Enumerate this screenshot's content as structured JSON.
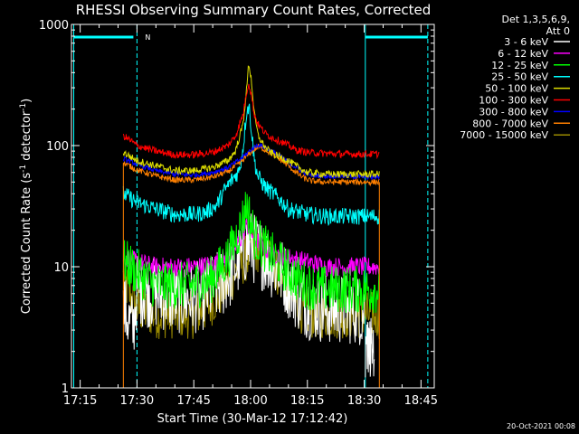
{
  "chart_data": {
    "type": "line",
    "title": "RHESSI Observing Summary Count Rates, Corrected",
    "xlabel": "Start Time (30-Mar-12 17:12:42)",
    "ylabel_main": "Corrected Count Rate (s",
    "ylabel_sup1": "-1",
    "ylabel_mid": " detector",
    "ylabel_sup2": "-1",
    "ylabel_end": ")",
    "yscale": "log",
    "ylim": [
      1,
      1000
    ],
    "xlim": [
      1032.7,
      1128.5
    ],
    "x_units": "minutes since 00:00 UT",
    "y_ticks": [
      {
        "value": 1,
        "label": "1"
      },
      {
        "value": 10,
        "label": "10"
      },
      {
        "value": 100,
        "label": "100"
      },
      {
        "value": 1000,
        "label": "1000"
      }
    ],
    "x_ticks": [
      {
        "value": 1035,
        "label": "17:15"
      },
      {
        "value": 1050,
        "label": "17:30"
      },
      {
        "value": 1065,
        "label": "17:45"
      },
      {
        "value": 1080,
        "label": "18:00"
      },
      {
        "value": 1095,
        "label": "18:15"
      },
      {
        "value": 1110,
        "label": "18:30"
      },
      {
        "value": 1125,
        "label": "18:45"
      }
    ],
    "legend_header": [
      "Det 1,3,5,6,9,",
      "Att 0"
    ],
    "legend": [
      {
        "label": "3 - 6 keV",
        "color": "#ffffff"
      },
      {
        "label": "6 - 12 keV",
        "color": "#ff00ff"
      },
      {
        "label": "12 - 25 keV",
        "color": "#00ff00"
      },
      {
        "label": "25 - 50 keV",
        "color": "#00ffff"
      },
      {
        "label": "50 - 100 keV",
        "color": "#dddd00"
      },
      {
        "label": "100 - 300 keV",
        "color": "#ff0000"
      },
      {
        "label": "300 - 800 keV",
        "color": "#0000ff"
      },
      {
        "label": "800 - 7000 keV",
        "color": "#ff8000"
      },
      {
        "label": "7000 - 15000 keV",
        "color": "#9a8a00"
      }
    ],
    "night_bar_label": "N",
    "series": [
      {
        "name": "3 - 6 keV",
        "color": "#ffffff",
        "noise": 0.3,
        "x": [
          1046.4,
          1047,
          1048,
          1049,
          1050,
          1055,
          1060,
          1065,
          1068,
          1072,
          1076,
          1078,
          1079,
          1080,
          1081,
          1084,
          1088,
          1092,
          1095,
          1100,
          1105,
          1108,
          1110
        ],
        "y": [
          4.5,
          4.2,
          3.5,
          3.0,
          6.5,
          6,
          5.5,
          5.5,
          6,
          7,
          10,
          13,
          15,
          15,
          14,
          12,
          9,
          6,
          5,
          4.5,
          4.5,
          4.5,
          4.2
        ]
      },
      {
        "name": "6 - 12 keV",
        "color": "#ff00ff",
        "noise": 0.08,
        "x": [
          1046.4,
          1050,
          1055,
          1060,
          1065,
          1070,
          1074,
          1077,
          1079,
          1080,
          1081,
          1083,
          1085,
          1090,
          1095,
          1100,
          1105,
          1110,
          1114
        ],
        "y": [
          12,
          11,
          10,
          10,
          10,
          10.5,
          12,
          16,
          22,
          20,
          17,
          15,
          13,
          12,
          11,
          10,
          10,
          10,
          10
        ]
      },
      {
        "name": "12 - 25 keV",
        "color": "#00ff00",
        "noise": 0.2,
        "x": [
          1046.4,
          1050,
          1055,
          1060,
          1065,
          1070,
          1074,
          1077,
          1079,
          1080,
          1081,
          1083,
          1086,
          1090,
          1095,
          1100,
          1105,
          1110,
          1114
        ],
        "y": [
          11,
          9,
          7,
          7,
          7,
          8,
          12,
          20,
          32,
          24,
          18,
          15,
          12,
          9,
          7,
          6.5,
          6.5,
          6.5,
          6.5
        ]
      },
      {
        "name": "25 - 50 keV",
        "color": "#00ffff",
        "noise": 0.07,
        "x": [
          1046.4,
          1050,
          1055,
          1060,
          1065,
          1068,
          1071,
          1073,
          1075,
          1077,
          1078,
          1079,
          1079.6,
          1080.2,
          1081,
          1082,
          1084,
          1086,
          1088,
          1090,
          1095,
          1100,
          1105,
          1110,
          1114
        ],
        "y": [
          40,
          34,
          30,
          27,
          27,
          28,
          32,
          42,
          52,
          62,
          95,
          200,
          210,
          140,
          75,
          55,
          45,
          40,
          35,
          30,
          27,
          26,
          26,
          26,
          26
        ]
      },
      {
        "name": "50 - 100 keV",
        "color": "#dddd00",
        "noise": 0.03,
        "x": [
          1046.4,
          1048,
          1050,
          1055,
          1060,
          1065,
          1070,
          1074,
          1076,
          1078,
          1079,
          1079.5,
          1080.2,
          1081,
          1082,
          1084,
          1086,
          1088,
          1090,
          1092,
          1095,
          1100,
          1105,
          1110,
          1114
        ],
        "y": [
          88,
          82,
          75,
          68,
          62,
          62,
          66,
          75,
          90,
          150,
          300,
          480,
          350,
          180,
          120,
          95,
          85,
          80,
          75,
          68,
          60,
          58,
          58,
          58,
          58
        ]
      },
      {
        "name": "100 - 300 keV",
        "color": "#ff0000",
        "noise": 0.03,
        "x": [
          1046.4,
          1048,
          1050,
          1055,
          1060,
          1065,
          1070,
          1074,
          1076,
          1078,
          1079,
          1079.5,
          1080.2,
          1081,
          1082,
          1084,
          1086,
          1088,
          1090,
          1092,
          1095,
          1100,
          1105,
          1110,
          1114
        ],
        "y": [
          120,
          112,
          100,
          90,
          84,
          84,
          88,
          100,
          120,
          180,
          280,
          330,
          260,
          180,
          150,
          125,
          115,
          108,
          100,
          92,
          88,
          86,
          85,
          85,
          85
        ]
      },
      {
        "name": "300 - 800 keV",
        "color": "#0000ff",
        "noise": 0.02,
        "x": [
          1046.4,
          1050,
          1055,
          1060,
          1065,
          1070,
          1074,
          1077,
          1079,
          1080,
          1082,
          1084,
          1086,
          1088,
          1090,
          1092,
          1094,
          1096,
          1100,
          1105,
          1110,
          1114
        ],
        "y": [
          78,
          70,
          62,
          58,
          57,
          60,
          66,
          76,
          86,
          92,
          102,
          96,
          88,
          80,
          73,
          66,
          60,
          57,
          56,
          56,
          55,
          55
        ]
      },
      {
        "name": "800 - 7000 keV",
        "color": "#ff8000",
        "noise": 0.025,
        "x": [
          1046.4,
          1050,
          1055,
          1060,
          1065,
          1070,
          1074,
          1077,
          1079,
          1080,
          1082,
          1084,
          1086,
          1088,
          1090,
          1092,
          1094,
          1096,
          1100,
          1105,
          1110,
          1114
        ],
        "y": [
          72,
          63,
          56,
          52,
          52,
          55,
          61,
          71,
          82,
          88,
          98,
          92,
          84,
          76,
          68,
          60,
          54,
          51,
          50,
          50,
          50,
          50
        ]
      },
      {
        "name": "7000 - 15000 keV",
        "color": "#9a8a00",
        "noise": 0.2,
        "x": [
          1046.4,
          1048,
          1050,
          1055,
          1060,
          1065,
          1068,
          1072,
          1075,
          1078,
          1080,
          1082,
          1085,
          1088,
          1090,
          1093,
          1096,
          1100,
          1105,
          1110,
          1114
        ],
        "y": [
          8,
          6,
          4.5,
          4,
          4,
          4,
          4.5,
          6,
          8,
          11,
          13,
          14,
          12,
          8,
          6,
          4.5,
          4,
          4,
          4,
          4,
          4
        ]
      }
    ]
  },
  "footer": {
    "timestamp": "20-Oct-2021 00:08"
  }
}
